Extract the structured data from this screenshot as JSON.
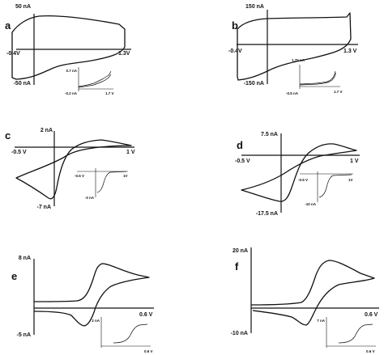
{
  "panels": [
    {
      "id": "a",
      "label": "a",
      "x_min_label": "-0.4V",
      "x_max_label": "1.3V",
      "y_max_label": "50 nA",
      "y_min_label": "-50 nA",
      "inset": {
        "y_max_label": "0.7 nA",
        "y_min_label": "-0.2 nA",
        "x_max_label": "1.7 V"
      }
    },
    {
      "id": "b",
      "label": "b",
      "x_min_label": "-0.4V",
      "x_max_label": "1.3 V",
      "y_max_label": "150 nA",
      "y_min_label": "-150 nA",
      "inset": {
        "y_max_label": "1.75 nA",
        "y_min_label": "-0.5 nA",
        "x_max_label": "1.7 V"
      }
    },
    {
      "id": "c",
      "label": "c",
      "x_min_label": "-0.5 V",
      "x_max_label": "1 V",
      "y_max_label": "2 nA",
      "y_min_label": "-7 nA",
      "inset": {
        "x_min_label": "-0.5 V",
        "x_max_label": "1V",
        "y_min_label": "-3 nA"
      }
    },
    {
      "id": "d",
      "label": "d",
      "x_min_label": "-0.5 V",
      "x_max_label": "1 V",
      "y_max_label": "7.5 nA",
      "y_min_label": "-17.5 nA",
      "inset": {
        "x_min_label": "-0.5 V",
        "x_max_label": "1V",
        "y_min_label": "-10 nA"
      }
    },
    {
      "id": "e",
      "label": "e",
      "x_max_label": "0.6 V",
      "y_max_label": "8 nA",
      "y_min_label": "-5 nA",
      "inset": {
        "y_max_label": "2 nA",
        "x_max_label": "0.6 V"
      }
    },
    {
      "id": "f",
      "label": "f",
      "x_max_label": "0.6 V",
      "y_max_label": "20 nA",
      "y_min_label": "-10 nA",
      "inset": {
        "y_max_label": "7 nA",
        "x_max_label": "0.6 V"
      }
    }
  ]
}
